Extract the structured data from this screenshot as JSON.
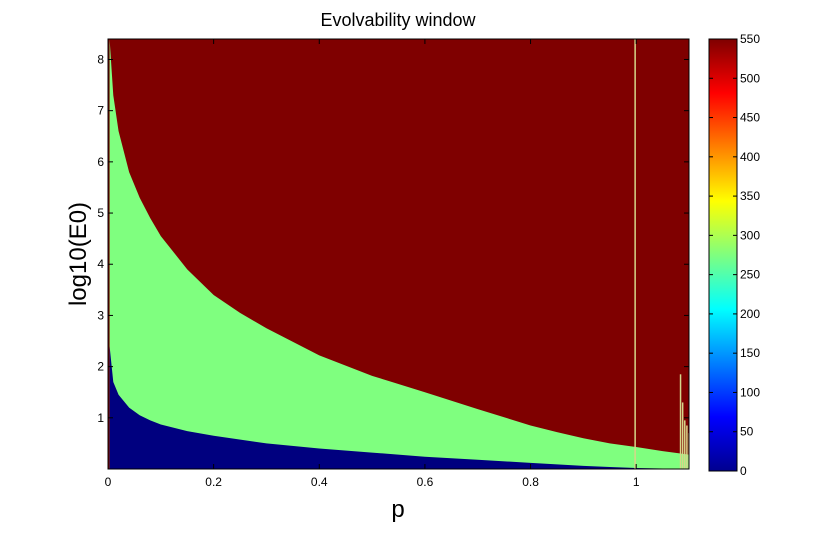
{
  "chart_data": {
    "type": "area",
    "title": "Evolvability window",
    "xlabel": "p",
    "ylabel": "log10(E0)",
    "xlim": [
      0,
      1.1
    ],
    "ylim": [
      0,
      8.4
    ],
    "x_ticks": [
      "0",
      "0.2",
      "0.4",
      "0.6",
      "0.8",
      "1"
    ],
    "x_tick_values": [
      0,
      0.2,
      0.4,
      0.6,
      0.8,
      1.0
    ],
    "y_ticks": [
      "1",
      "2",
      "3",
      "4",
      "5",
      "6",
      "7",
      "8"
    ],
    "y_tick_values": [
      1,
      2,
      3,
      4,
      5,
      6,
      7,
      8
    ],
    "grid": false,
    "colorbar": {
      "ticks": [
        "0",
        "50",
        "100",
        "150",
        "200",
        "250",
        "300",
        "350",
        "400",
        "450",
        "500",
        "550"
      ],
      "tick_values": [
        0,
        50,
        100,
        150,
        200,
        250,
        300,
        350,
        400,
        450,
        500,
        550
      ],
      "range": [
        0,
        550
      ],
      "colormap": "jet"
    },
    "regions": [
      {
        "color": "#00007f",
        "level": 0,
        "upper_boundary": {
          "x": [
            0.003,
            0.01,
            0.02,
            0.04,
            0.06,
            0.08,
            0.1,
            0.15,
            0.2,
            0.3,
            0.4,
            0.5,
            0.6,
            0.7,
            0.8,
            0.85,
            0.9,
            0.95,
            1.0,
            1.05,
            1.1
          ],
          "y": [
            2.4,
            1.7,
            1.45,
            1.2,
            1.05,
            0.95,
            0.87,
            0.74,
            0.65,
            0.5,
            0.4,
            0.32,
            0.24,
            0.18,
            0.12,
            0.09,
            0.06,
            0.04,
            0.02,
            0.01,
            0.0
          ]
        }
      },
      {
        "color": "#7fff7f",
        "level": 275,
        "upper_boundary": {
          "x": [
            0.003,
            0.01,
            0.02,
            0.04,
            0.06,
            0.08,
            0.1,
            0.15,
            0.2,
            0.25,
            0.3,
            0.4,
            0.5,
            0.6,
            0.7,
            0.8,
            0.85,
            0.9,
            0.95,
            1.0,
            1.05,
            1.1
          ],
          "y": [
            8.4,
            7.3,
            6.6,
            5.8,
            5.3,
            4.9,
            4.55,
            3.9,
            3.4,
            3.05,
            2.75,
            2.22,
            1.82,
            1.5,
            1.17,
            0.85,
            0.72,
            0.6,
            0.5,
            0.43,
            0.35,
            0.28
          ]
        }
      },
      {
        "color": "#7f0000",
        "level": 550,
        "upper_boundary": {
          "x": [
            0.0,
            1.1
          ],
          "y": [
            8.4,
            8.4
          ]
        }
      }
    ],
    "spikes": [
      {
        "x": 0.998,
        "y": 8.4,
        "color": "#d6d68a"
      },
      {
        "x": 1.084,
        "y": 1.85,
        "color": "#d6d68a"
      },
      {
        "x": 1.088,
        "y": 1.3,
        "color": "#d6d68a"
      },
      {
        "x": 1.092,
        "y": 0.95,
        "color": "#d6d68a"
      },
      {
        "x": 1.096,
        "y": 0.85,
        "color": "#d6d68a"
      },
      {
        "x": 1.1,
        "y": 0.7,
        "color": "#d6d68a"
      }
    ]
  }
}
